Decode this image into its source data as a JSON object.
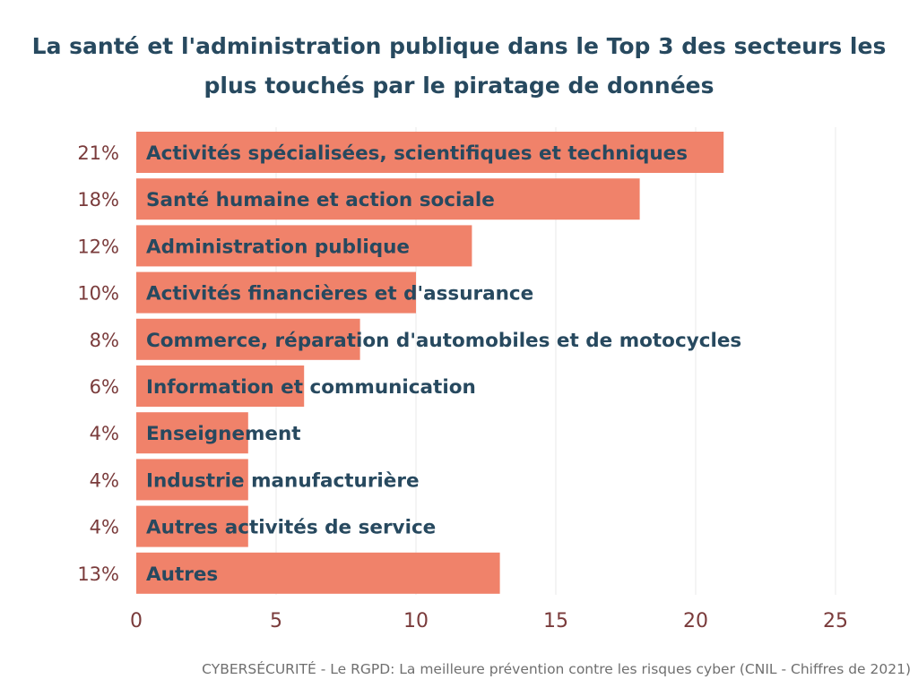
{
  "chart_data": {
    "type": "bar",
    "orientation": "horizontal",
    "title_lines": [
      "La santé et l'administration publique dans le Top 3 des secteurs les",
      "plus touchés par le piratage de données"
    ],
    "categories": [
      "Activités spécialisées, scientifiques et techniques",
      "Santé humaine et action sociale",
      "Administration publique",
      "Activités financières et d'assurance",
      "Commerce, réparation d'automobiles et de motocycles",
      "Information et communication",
      "Enseignement",
      "Industrie manufacturière",
      "Autres activités de service",
      "Autres"
    ],
    "values": [
      21,
      18,
      12,
      10,
      8,
      6,
      4,
      4,
      4,
      13
    ],
    "value_labels": [
      "21%",
      "18%",
      "12%",
      "10%",
      "8%",
      "6%",
      "4%",
      "4%",
      "4%",
      "13%"
    ],
    "x_ticks": [
      0,
      5,
      10,
      15,
      20,
      25
    ],
    "xlim": [
      0,
      25
    ],
    "grid": "vertical",
    "legend": "none",
    "colors": {
      "bar": "#f0826a",
      "category_text": "#27495f",
      "value_label": "#7a3b3b",
      "tick_label": "#7a3b3b",
      "grid": "#e8e8e8"
    }
  },
  "caption": "CYBERSÉCURITÉ - Le RGPD: La meilleure prévention contre les risques cyber (CNIL - Chiffres de 2021)"
}
